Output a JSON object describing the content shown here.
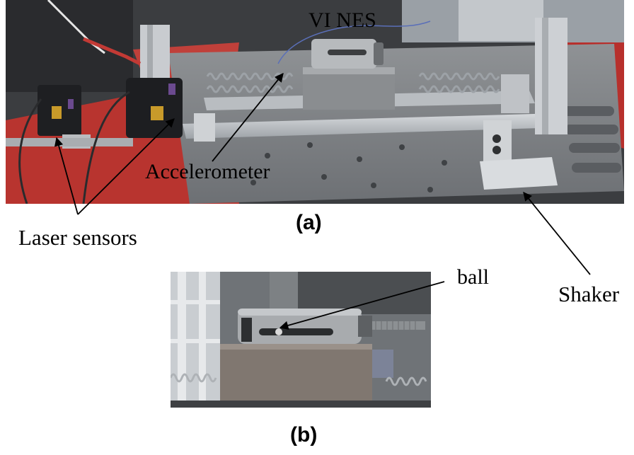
{
  "labels": {
    "vines": "VI NES",
    "accelerometer": "Accelerometer",
    "laser_sensors": "Laser sensors",
    "shaker": "Shaker",
    "ball": "ball"
  },
  "captions": {
    "a": "(a)",
    "b": "(b)"
  }
}
